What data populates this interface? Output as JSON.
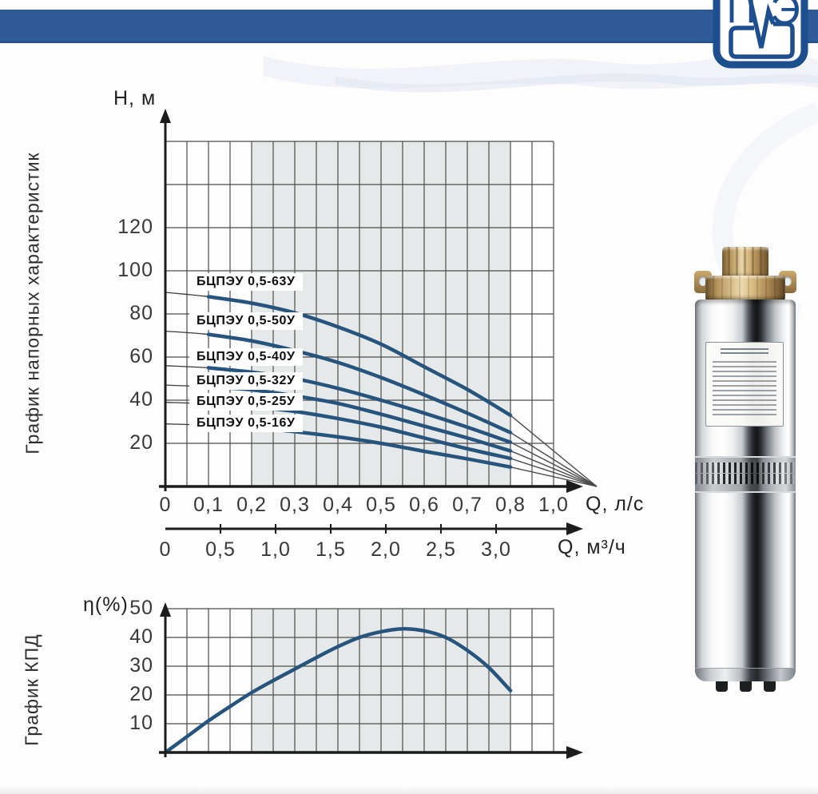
{
  "logo": {
    "letter_left": "П",
    "letter_right": "Э"
  },
  "colors": {
    "header_bar": "#2e5a97",
    "logo_blue": "#1d4e8e",
    "curve": "#26547c",
    "grid": "#4d4d4d",
    "shade": "#e6e9e9",
    "axis": "#1c1c1c"
  },
  "chart_data": [
    {
      "type": "line",
      "title": "График напорных характеристик",
      "ylabel": "H, м",
      "xlabel": "Q, л/с",
      "xlabel_secondary": "Q, м³/ч",
      "ylim": [
        0,
        160
      ],
      "xlim": [
        0,
        1.0
      ],
      "grid": true,
      "y_ticks": [
        "120",
        "100",
        "80",
        "60",
        "40",
        "20"
      ],
      "x_ticks": [
        "0",
        "0,1",
        "0,2",
        "0,3",
        "0,4",
        "0,5",
        "0,6",
        "0,7",
        "0,8",
        "1,0"
      ],
      "x_ticks_secondary": [
        "0",
        "0,5",
        "1,0",
        "1,5",
        "2,0",
        "2,5",
        "3,0"
      ],
      "shaded_q_range": [
        0.2,
        0.8
      ],
      "q_ls": [
        0,
        0.1,
        0.2,
        0.3,
        0.4,
        0.5,
        0.6,
        0.7,
        0.8
      ],
      "series": [
        {
          "name": "БЦПЭУ 0,5-63У",
          "head_m": [
            90,
            88,
            85,
            80.5,
            74,
            66,
            55.5,
            45,
            33
          ]
        },
        {
          "name": "БЦПЭУ 0,5-50У",
          "head_m": [
            72,
            70.5,
            67.5,
            63,
            57.5,
            50.5,
            42.5,
            34,
            25
          ]
        },
        {
          "name": "БЦПЭУ 0,5-40У",
          "head_m": [
            56,
            55,
            53,
            50,
            45.5,
            40,
            34,
            27.5,
            20.5
          ]
        },
        {
          "name": "БЦПЭУ 0,5-32У",
          "head_m": [
            47,
            46.2,
            44.8,
            42,
            38.5,
            33.5,
            28,
            22.5,
            16.5
          ]
        },
        {
          "name": "БЦПЭУ 0,5-25У",
          "head_m": [
            39,
            38.3,
            37,
            34.8,
            31.5,
            27.5,
            22.5,
            17.5,
            13
          ]
        },
        {
          "name": "БЦПЭУ 0,5-16У",
          "head_m": [
            29,
            28.4,
            27.3,
            25.4,
            23,
            20,
            16.3,
            12.8,
            9
          ]
        }
      ],
      "convergence_point": {
        "q_ls": 1.0,
        "head_m": 0
      }
    },
    {
      "type": "line",
      "title": "График КПД",
      "ylabel": "η(%)",
      "ylim": [
        0,
        50
      ],
      "xlim": [
        0,
        1.0
      ],
      "grid": true,
      "y_ticks": [
        "50",
        "40",
        "30",
        "20",
        "10"
      ],
      "shaded_q_range": [
        0.2,
        0.8
      ],
      "curve": {
        "q_ls": [
          0,
          0.05,
          0.1,
          0.15,
          0.2,
          0.25,
          0.3,
          0.35,
          0.4,
          0.45,
          0.5,
          0.55,
          0.6,
          0.65,
          0.7,
          0.75,
          0.8
        ],
        "eta_pct": [
          0,
          5.5,
          11,
          16,
          20.8,
          25,
          29,
          33,
          36.8,
          40,
          42,
          43,
          42.3,
          40,
          35.5,
          29.5,
          21.5
        ]
      }
    }
  ]
}
